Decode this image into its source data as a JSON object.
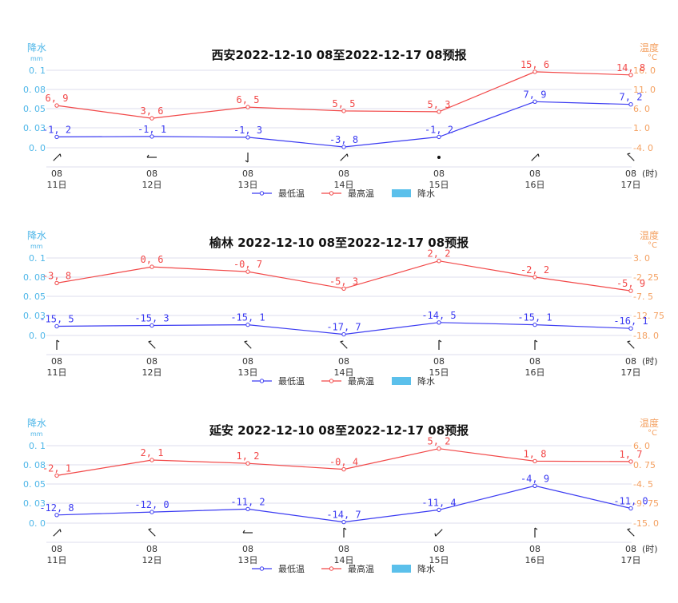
{
  "axis_labels": {
    "left_title": "降水",
    "left_unit": "mm",
    "right_title": "温度",
    "right_unit": "°C",
    "hour_unit": "(时)"
  },
  "legend": {
    "min_label": "最低温",
    "max_label": "最高温",
    "precip_label": "降水"
  },
  "colors": {
    "min": "#3b3bf2",
    "max": "#f24848",
    "precip": "#5bc0eb",
    "left_axis": "#4db6e8",
    "right_axis": "#f4a060",
    "grid": "#e3e3f0"
  },
  "chart_data": [
    {
      "type": "line",
      "title": "西安2022-12-10 08至2022-12-17 08预报",
      "city": "西安",
      "categories": [
        "08 11日",
        "08 12日",
        "08 13日",
        "08 14日",
        "08 15日",
        "08 16日",
        "08 17日"
      ],
      "x_hour": [
        "08",
        "08",
        "08",
        "08",
        "08",
        "08",
        "08"
      ],
      "x_day": [
        "11日",
        "12日",
        "13日",
        "14日",
        "15日",
        "16日",
        "17日"
      ],
      "series": [
        {
          "name": "最低温",
          "values": [
            -1.2,
            -1.1,
            -1.3,
            -3.8,
            -1.2,
            7.9,
            7.2
          ]
        },
        {
          "name": "最高温",
          "values": [
            6.9,
            3.6,
            6.5,
            5.5,
            5.3,
            15.6,
            14.8
          ]
        },
        {
          "name": "降水",
          "values": [
            0,
            0,
            0,
            0,
            0,
            0,
            0
          ]
        }
      ],
      "value_labels_min": [
        "-1.2",
        "-1.1",
        "-1.3",
        "-3.8",
        "-1.2",
        "7.9",
        "7.2"
      ],
      "value_labels_max": [
        "6.9",
        "3.6",
        "6.5",
        "5.5",
        "5.3",
        "15.6",
        "14.8"
      ],
      "left_ticks": [
        "0.1",
        "0.08",
        "0.05",
        "0.03",
        "0.0"
      ],
      "right_ticks": [
        "16.0",
        "11.0",
        "6.0",
        "1.0",
        "-4.0"
      ],
      "ylim_right": [
        -4.0,
        16.0
      ],
      "ylim_left": [
        0,
        0.1
      ],
      "ylabel_left": "降水 mm",
      "ylabel_right": "温度 °C",
      "wind_barbs": [
        "NE",
        "W",
        "S",
        "NE",
        "calm",
        "NE",
        "NW"
      ]
    },
    {
      "type": "line",
      "title": "榆林 2022-12-10 08至2022-12-17 08预报",
      "city": "榆林",
      "categories": [
        "08 11日",
        "08 12日",
        "08 13日",
        "08 14日",
        "08 15日",
        "08 16日",
        "08 17日"
      ],
      "x_hour": [
        "08",
        "08",
        "08",
        "08",
        "08",
        "08",
        "08"
      ],
      "x_day": [
        "11日",
        "12日",
        "13日",
        "14日",
        "15日",
        "16日",
        "17日"
      ],
      "series": [
        {
          "name": "最低温",
          "values": [
            -15.5,
            -15.3,
            -15.1,
            -17.7,
            -14.5,
            -15.1,
            -16.1
          ]
        },
        {
          "name": "最高温",
          "values": [
            -3.8,
            0.6,
            -0.7,
            -5.3,
            2.2,
            -2.2,
            -5.9
          ]
        },
        {
          "name": "降水",
          "values": [
            0,
            0,
            0,
            0,
            0,
            0,
            0
          ]
        }
      ],
      "value_labels_min": [
        "-15.5",
        "-15.3",
        "-15.1",
        "-17.7",
        "-14.5",
        "-15.1",
        "-16.1"
      ],
      "value_labels_max": [
        "-3.8",
        "0.6",
        "-0.7",
        "-5.3",
        "2.2",
        "-2.2",
        "-5.9"
      ],
      "left_ticks": [
        "0.1",
        "0.08",
        "0.05",
        "0.03",
        "0.0"
      ],
      "right_ticks": [
        "3.0",
        "-2.25",
        "-7.5",
        "-12.75",
        "-18.0"
      ],
      "ylim_right": [
        -18.0,
        3.0
      ],
      "ylim_left": [
        0,
        0.1
      ],
      "ylabel_left": "降水 mm",
      "ylabel_right": "温度 °C",
      "wind_barbs": [
        "N",
        "NW",
        "NW",
        "NW",
        "N",
        "N",
        "NW"
      ]
    },
    {
      "type": "line",
      "title": "延安 2022-12-10 08至2022-12-17 08预报",
      "city": "延安",
      "categories": [
        "08 11日",
        "08 12日",
        "08 13日",
        "08 14日",
        "08 15日",
        "08 16日",
        "08 17日"
      ],
      "x_hour": [
        "08",
        "08",
        "08",
        "08",
        "08",
        "08",
        "08"
      ],
      "x_day": [
        "11日",
        "12日",
        "13日",
        "14日",
        "15日",
        "16日",
        "17日"
      ],
      "series": [
        {
          "name": "最低温",
          "values": [
            -12.8,
            -12.0,
            -11.2,
            -14.7,
            -11.4,
            -4.9,
            -11.0
          ]
        },
        {
          "name": "最高温",
          "values": [
            -2.1,
            2.1,
            1.2,
            -0.4,
            5.2,
            1.8,
            1.7
          ]
        },
        {
          "name": "降水",
          "values": [
            0,
            0,
            0,
            0,
            0,
            0,
            0
          ]
        }
      ],
      "value_labels_min": [
        "-12.8",
        "-12.0",
        "-11.2",
        "-14.7",
        "-11.4",
        "-4.9",
        "-11.0"
      ],
      "value_labels_max": [
        "-2.1",
        "2.1",
        "1.2",
        "-0.4",
        "5.2",
        "1.8",
        "1.7"
      ],
      "left_ticks": [
        "0.1",
        "0.08",
        "0.05",
        "0.03",
        "0.0"
      ],
      "right_ticks": [
        "6.0",
        "0.75",
        "-4.5",
        "-9.75",
        "-15.0"
      ],
      "ylim_right": [
        -15.0,
        6.0
      ],
      "ylim_left": [
        0,
        0.1
      ],
      "ylabel_left": "降水 mm",
      "ylabel_right": "温度 °C",
      "wind_barbs": [
        "NE",
        "NW",
        "W",
        "N",
        "SW",
        "N",
        "NW"
      ]
    }
  ]
}
